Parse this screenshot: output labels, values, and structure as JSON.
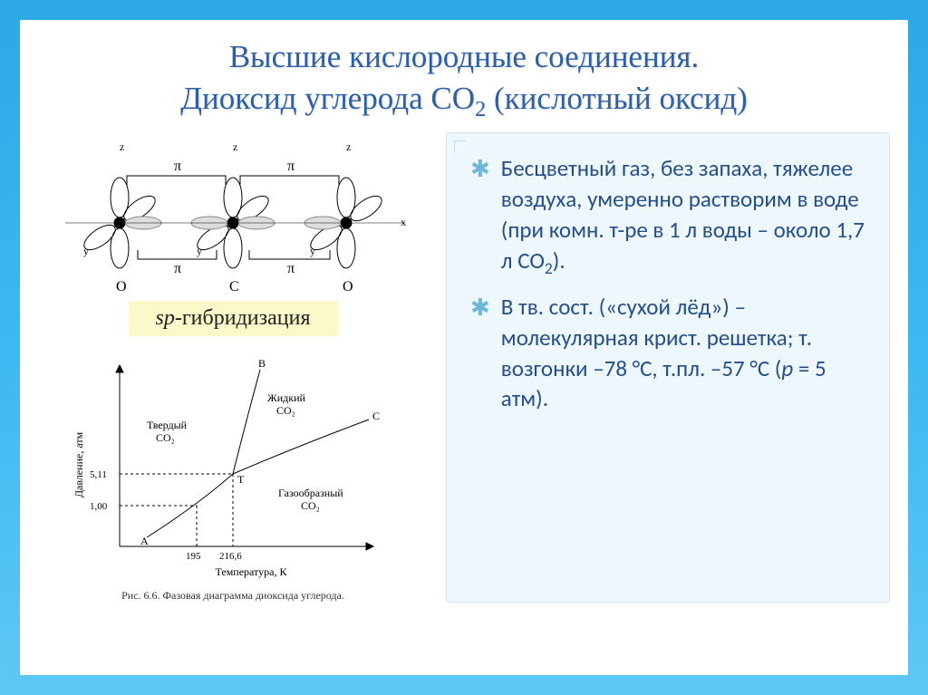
{
  "title_line1": "Высшие кислородные соединения.",
  "title_line2_pre": "Диоксид углерода CO",
  "title_co2_sub": "2",
  "title_line2_post": " (кислотный оксид)",
  "sp_label_prefix": "sp",
  "sp_label_suffix": "-гибридизация",
  "bullets": [
    {
      "text_parts": [
        {
          "t": "Бесцветный газ, без запаха, тяжелее воздуха, умеренно растворим в воде (при комн. т-ре в 1 л воды – около 1,7 л CO"
        },
        {
          "t": "2",
          "sub": true
        },
        {
          "t": ")."
        }
      ]
    },
    {
      "text_parts": [
        {
          "t": "В тв. сост. («сухой лёд») – молекулярная крист. решетка;  т. возгонки –78 °C, т.пл. –57 °C       ("
        },
        {
          "t": "p",
          "i": true
        },
        {
          "t": " = 5 атм)."
        }
      ]
    }
  ],
  "orbital": {
    "pi_label": "π",
    "atom_labels": [
      "O",
      "C",
      "O"
    ],
    "axis_labels": {
      "x": "x",
      "y": "y",
      "z": "z"
    },
    "line_color": "#000000",
    "bg": "#ffffff"
  },
  "phase": {
    "caption": "Рис. 6.6. Фазовая диаграмма диоксида углерода.",
    "xlabel": "Температура, К",
    "ylabel": "Давление, атм",
    "yticks": [
      "5,11",
      "1,00"
    ],
    "xticks": [
      "195",
      "216,6"
    ],
    "regions": {
      "solid": "Твердый CO₂",
      "liquid": "Жидкий CO₂",
      "gas": "Газообразный CO₂"
    },
    "points": [
      "A",
      "B",
      "C",
      "T"
    ],
    "line_color": "#000000",
    "grid_color": "#666666"
  },
  "colors": {
    "frame_bg": "#ffffff",
    "title_color": "#2d5fa8",
    "body_text": "#254f8a",
    "right_box_bg": "#eef7fc",
    "right_box_border": "#cfe8f5",
    "sp_bg": "#fbf9ca",
    "bullet_star": "#6fb8d8"
  }
}
